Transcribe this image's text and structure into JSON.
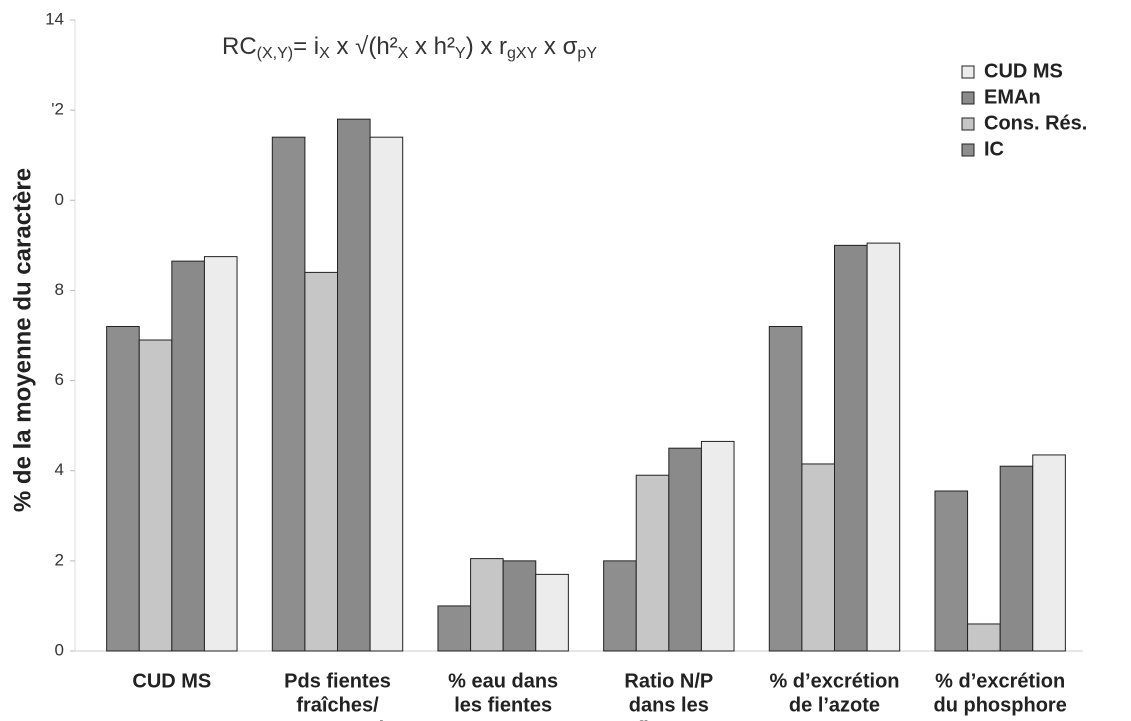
{
  "chart_data": {
    "type": "bar",
    "formula": [
      "RC",
      "(X,Y)",
      "= i",
      "X",
      " x √(h²",
      "X",
      " x h²",
      "Y",
      ") x r",
      "gXY",
      " x σ",
      "pY"
    ],
    "y_label": "% de la moyenne du caractère",
    "categories": [
      [
        "CUD MS"
      ],
      [
        "Pds fientes",
        "fraîches/",
        "consommation"
      ],
      [
        "% eau dans",
        "les fientes"
      ],
      [
        "Ratio N/P",
        "dans les",
        "fientes"
      ],
      [
        "% d’excrétion",
        "de l’azote"
      ],
      [
        "% d’excrétion",
        "du phosphore"
      ]
    ],
    "series": [
      {
        "name": "CUD MS",
        "color": "#ececec",
        "values": [
          8.75,
          11.4,
          1.7,
          4.65,
          9.05,
          4.35
        ]
      },
      {
        "name": "EMAn",
        "color": "#8a8a8a",
        "values": [
          8.65,
          11.8,
          2.0,
          4.5,
          9.0,
          4.1
        ]
      },
      {
        "name": "Cons. Rés.",
        "color": "#c6c6c6",
        "values": [
          6.9,
          8.4,
          2.05,
          3.9,
          4.15,
          0.6
        ]
      },
      {
        "name": "IC",
        "color": "#8e8e8e",
        "values": [
          7.2,
          11.4,
          1.0,
          2.0,
          7.2,
          3.55
        ]
      }
    ],
    "ylim": [
      0,
      14
    ],
    "yticks": [
      0,
      2,
      4,
      6,
      8,
      {
        "value": 10,
        "label": "0"
      },
      {
        "value": 12,
        "label": "'2"
      },
      14
    ],
    "legend": "top-right"
  }
}
